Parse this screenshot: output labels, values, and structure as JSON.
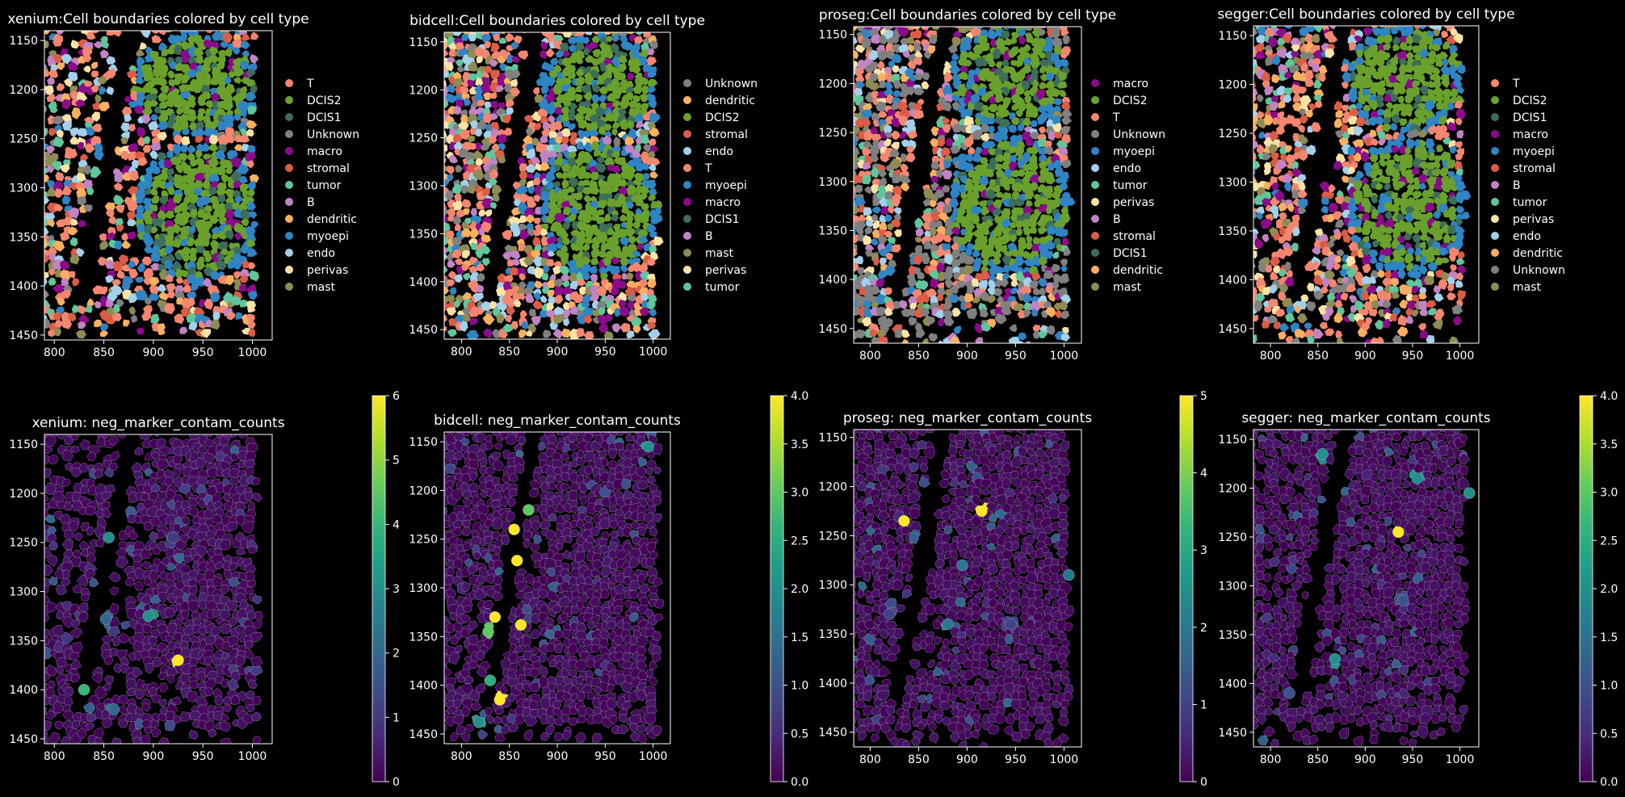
{
  "figure": {
    "background": "#000000"
  },
  "palette": {
    "T": "#f4866f",
    "DCIS2": "#6aa12c",
    "DCIS1": "#3d6e5b",
    "Unknown": "#808080",
    "macro": "#8b0b8b",
    "stromal": "#dd5c45",
    "tumor": "#5fc79b",
    "B": "#c283c4",
    "dendritic": "#fbb05f",
    "myoepi": "#2f84c4",
    "endo": "#a3d0ea",
    "perivas": "#fde2a6",
    "mast": "#8e8c52"
  },
  "chart_data": [
    {
      "type": "scatter",
      "kind": "celltype",
      "title": "xenium:Cell boundaries colored by cell type",
      "xlim": [
        790,
        1020
      ],
      "ylim": [
        1455,
        1140
      ],
      "xticks": [
        800,
        850,
        900,
        950,
        1000
      ],
      "yticks": [
        1150,
        1200,
        1250,
        1300,
        1350,
        1400,
        1450
      ],
      "legend": [
        "T",
        "DCIS2",
        "DCIS1",
        "Unknown",
        "macro",
        "stromal",
        "tumor",
        "B",
        "dendritic",
        "myoepi",
        "endo",
        "perivas",
        "mast"
      ],
      "legend_placement": "right"
    },
    {
      "type": "scatter",
      "kind": "celltype",
      "title": "bidcell:Cell boundaries colored by cell type",
      "xlim": [
        782,
        1018
      ],
      "ylim": [
        1460,
        1140
      ],
      "xticks": [
        800,
        850,
        900,
        950,
        1000
      ],
      "yticks": [
        1150,
        1200,
        1250,
        1300,
        1350,
        1400,
        1450
      ],
      "legend": [
        "Unknown",
        "dendritic",
        "DCIS2",
        "stromal",
        "endo",
        "T",
        "myoepi",
        "macro",
        "DCIS1",
        "B",
        "mast",
        "perivas",
        "tumor"
      ],
      "legend_placement": "right"
    },
    {
      "type": "scatter",
      "kind": "celltype",
      "title": "proseg:Cell boundaries colored by cell type",
      "xlim": [
        783,
        1018
      ],
      "ylim": [
        1465,
        1142
      ],
      "xticks": [
        800,
        850,
        900,
        950,
        1000
      ],
      "yticks": [
        1150,
        1200,
        1250,
        1300,
        1350,
        1400,
        1450
      ],
      "legend": [
        "macro",
        "DCIS2",
        "T",
        "Unknown",
        "myoepi",
        "endo",
        "tumor",
        "perivas",
        "B",
        "stromal",
        "DCIS1",
        "dendritic",
        "mast"
      ],
      "legend_placement": "right"
    },
    {
      "type": "scatter",
      "kind": "celltype",
      "title": "segger:Cell boundaries colored by cell type",
      "xlim": [
        782,
        1020
      ],
      "ylim": [
        1465,
        1140
      ],
      "xticks": [
        800,
        850,
        900,
        950,
        1000
      ],
      "yticks": [
        1150,
        1200,
        1250,
        1300,
        1350,
        1400,
        1450
      ],
      "legend": [
        "T",
        "DCIS2",
        "DCIS1",
        "macro",
        "myoepi",
        "stromal",
        "B",
        "tumor",
        "perivas",
        "endo",
        "dendritic",
        "Unknown",
        "mast"
      ],
      "legend_placement": "right"
    },
    {
      "type": "heatmap",
      "kind": "contam",
      "title": "xenium: neg_marker_contam_counts",
      "xlim": [
        790,
        1020
      ],
      "ylim": [
        1455,
        1140
      ],
      "xticks": [
        800,
        850,
        900,
        950,
        1000
      ],
      "yticks": [
        1150,
        1200,
        1250,
        1300,
        1350,
        1400,
        1450
      ],
      "colorbar": {
        "min": 0,
        "max": 6,
        "ticks": [
          "0",
          "1",
          "2",
          "3",
          "4",
          "5",
          "6"
        ],
        "colormap": "viridis"
      },
      "hotspots": [
        [
          925,
          1370,
          6
        ],
        [
          852,
          1328,
          2
        ],
        [
          895,
          1325,
          3
        ],
        [
          855,
          1245,
          3
        ],
        [
          830,
          1400,
          4
        ],
        [
          920,
          1245,
          1
        ],
        [
          860,
          1420,
          2
        ]
      ]
    },
    {
      "type": "heatmap",
      "kind": "contam",
      "title": "bidcell: neg_marker_contam_counts",
      "xlim": [
        782,
        1018
      ],
      "ylim": [
        1460,
        1140
      ],
      "xticks": [
        800,
        850,
        900,
        950,
        1000
      ],
      "yticks": [
        1150,
        1200,
        1250,
        1300,
        1350,
        1400,
        1450
      ],
      "colorbar": {
        "min": 0,
        "max": 4,
        "ticks": [
          "0.0",
          "0.5",
          "1.0",
          "1.5",
          "2.0",
          "2.5",
          "3.0",
          "3.5",
          "4.0"
        ],
        "colormap": "viridis"
      },
      "hotspots": [
        [
          835,
          1330,
          4
        ],
        [
          862,
          1338,
          4
        ],
        [
          858,
          1272,
          4
        ],
        [
          855,
          1240,
          4
        ],
        [
          840,
          1415,
          4
        ],
        [
          828,
          1345,
          3
        ],
        [
          870,
          1220,
          3
        ],
        [
          830,
          1395,
          2.5
        ],
        [
          995,
          1155,
          2
        ],
        [
          818,
          1438,
          2
        ]
      ]
    },
    {
      "type": "heatmap",
      "kind": "contam",
      "title": "proseg: neg_marker_contam_counts",
      "xlim": [
        783,
        1018
      ],
      "ylim": [
        1465,
        1142
      ],
      "xticks": [
        800,
        850,
        900,
        950,
        1000
      ],
      "yticks": [
        1150,
        1200,
        1250,
        1300,
        1350,
        1400,
        1450
      ],
      "colorbar": {
        "min": 0,
        "max": 5,
        "ticks": [
          "0",
          "1",
          "2",
          "3",
          "4",
          "5"
        ],
        "colormap": "viridis"
      },
      "hotspots": [
        [
          915,
          1225,
          5
        ],
        [
          835,
          1235,
          5
        ],
        [
          895,
          1280,
          2
        ],
        [
          1005,
          1290,
          2
        ],
        [
          880,
          1340,
          2
        ],
        [
          945,
          1340,
          1
        ],
        [
          820,
          1330,
          1
        ]
      ]
    },
    {
      "type": "heatmap",
      "kind": "contam",
      "title": "segger: neg_marker_contam_counts",
      "xlim": [
        782,
        1020
      ],
      "ylim": [
        1465,
        1140
      ],
      "xticks": [
        800,
        850,
        900,
        950,
        1000
      ],
      "yticks": [
        1150,
        1200,
        1250,
        1300,
        1350,
        1400,
        1450
      ],
      "colorbar": {
        "min": 0,
        "max": 4,
        "ticks": [
          "0.0",
          "0.5",
          "1.0",
          "1.5",
          "2.0",
          "2.5",
          "3.0",
          "3.5",
          "4.0"
        ],
        "colormap": "viridis"
      },
      "hotspots": [
        [
          935,
          1245,
          4
        ],
        [
          868,
          1375,
          2
        ],
        [
          1010,
          1205,
          2
        ],
        [
          955,
          1190,
          2
        ],
        [
          855,
          1165,
          2
        ],
        [
          940,
          1315,
          1
        ],
        [
          820,
          1410,
          1
        ]
      ]
    }
  ]
}
